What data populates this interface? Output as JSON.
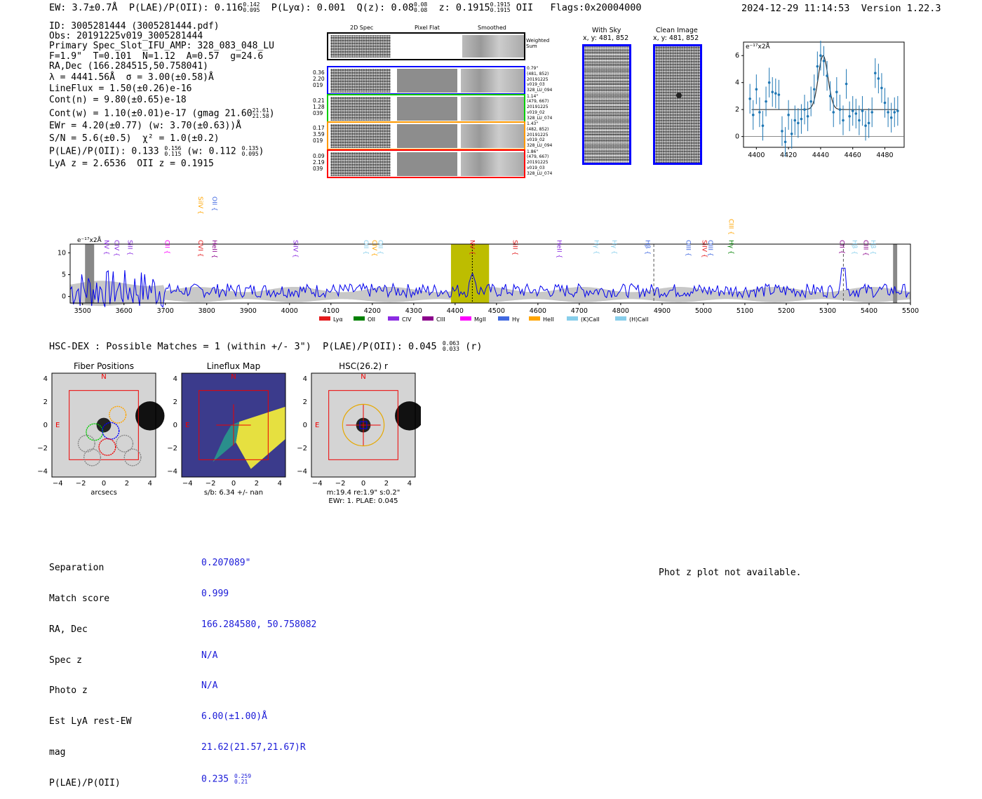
{
  "header": {
    "ew": "EW: 3.7±0.7Å",
    "plae": "P(LAE)/P(OII): 0.116",
    "plae_hi": "0.142",
    "plae_lo": "0.095",
    "plya": "P(Lyα): 0.001",
    "qz": "Q(z): 0.08",
    "qz_hi": "0.08",
    "qz_lo": "0.08",
    "z": "z: 0.1915",
    "z_hi": "0.1915",
    "z_lo": "0.1915",
    "z_line": "OII",
    "flags": "Flags:0x20004000",
    "datetime": "2024-12-29 11:14:53",
    "version": "Version 1.22.3"
  },
  "info": {
    "id": "ID: 3005281444 (3005281444.pdf)",
    "obs": "Obs: 20191225v019_3005281444",
    "primary": "Primary Spec_Slot_IFU_AMP: 328_083_048_LU",
    "fiber": "F=1.9\"  T=0.101  N=1.12  A=0.57  g=24.6",
    "radec": "RA,Dec (166.284515,50.758041)",
    "lambda": "λ = 4441.56Å  σ = 3.00(±0.58)Å",
    "lineflux": "LineFlux = 1.50(±0.26)e-16",
    "contn": "Cont(n) = 9.80(±0.65)e-18",
    "contw": "Cont(w) = 1.10(±0.01)e-17 (gmag 21.60",
    "contw_hi": "21.61",
    "contw_lo": "21.58",
    "ewr": "EWr = 4.20(±0.77) (w: 3.70(±0.63))Å",
    "sn": "S/N = 5.6(±0.5)  χ² = 1.0(±0.2)",
    "plae": "P(LAE)/P(OII): 0.133",
    "plae_hi": "0.156",
    "plae_lo": "0.115",
    "plae_w": "(w: 0.112",
    "plae_w_hi": "0.135",
    "plae_w_lo": "0.095",
    "lya": "LyA z = 2.6536  OII z = 0.1915"
  },
  "cutouts": {
    "col_2d": "2D Spec",
    "col_flat": "Pixel Flat",
    "col_smooth": "Smoothed",
    "weighted": "Weighted Sum",
    "rows": [
      {
        "left": [
          "0.36",
          "2.20",
          "019"
        ],
        "right": [
          "0.79\"",
          "(481, 852)",
          "20191225",
          "v019_03",
          "328_LU_094"
        ],
        "color": "#0000ff"
      },
      {
        "left": [
          "0.21",
          "1.28",
          "039"
        ],
        "right": [
          "1.14\"",
          "(479, 667)",
          "20191225",
          "v019_02",
          "328_LU_074"
        ],
        "color": "#00cc00"
      },
      {
        "left": [
          "0.17",
          "3.59",
          "019"
        ],
        "right": [
          "1.43\"",
          "(482, 852)",
          "20191225",
          "v019_02",
          "328_LU_094"
        ],
        "color": "#ff9900"
      },
      {
        "left": [
          "0.09",
          "2.19",
          "039"
        ],
        "right": [
          "1.86\"",
          "(479, 667)",
          "20191225",
          "v019_03",
          "328_LU_074"
        ],
        "color": "#ff0000"
      }
    ]
  },
  "sky": {
    "with_sky": "With Sky",
    "with_sky_xy": "x, y: 481, 852",
    "clean": "Clean Image",
    "clean_xy": "x, y: 481, 852"
  },
  "zoom_plot": {
    "unit": "e⁻¹⁷x2Å"
  },
  "full_spec": {
    "unit": "e⁻¹⁷x2Å",
    "legend": [
      {
        "name": "Lyα",
        "color": "#e41a1c"
      },
      {
        "name": "OII",
        "color": "#008000"
      },
      {
        "name": "CIV",
        "color": "#8a2be2"
      },
      {
        "name": "CIII",
        "color": "#8b008b"
      },
      {
        "name": "MgII",
        "color": "#ff00ff"
      },
      {
        "name": "Hγ",
        "color": "#4169e1"
      },
      {
        "name": "HeII",
        "color": "#ffa500"
      },
      {
        "name": "(K)CaII",
        "color": "#87ceeb"
      },
      {
        "name": "(H)CaII",
        "color": "#87ceeb"
      }
    ]
  },
  "hsc": {
    "title": "HSC-DEX : Possible Matches = 1 (within +/- 3\")  P(LAE)/P(OII): 0.045",
    "plae_hi": "0.063",
    "plae_lo": "0.033",
    "band": "(r)"
  },
  "maps": {
    "fiber_title": "Fiber Positions",
    "fiber_xlabel": "arcsecs",
    "lineflux_title": "Lineflux Map",
    "lineflux_xlabel": "s/b: 6.34 +/- nan",
    "hsc_title": "HSC(26.2) r",
    "hsc_xlabel1": "m:19.4  re:1.9\"  s:0.2\"",
    "hsc_xlabel2": "EWr: 1. PLAE: 0.045",
    "north": "N",
    "east": "E",
    "yticks": [
      "4",
      "2",
      "0",
      "−2",
      "−4"
    ],
    "xticks": [
      "−4",
      "−2",
      "0",
      "2",
      "4"
    ]
  },
  "bottom": {
    "labels": [
      "Separation",
      "Match score",
      "RA, Dec",
      "Spec z",
      "Photo z",
      "Est LyA rest-EW",
      "mag",
      "P(LAE)/P(OII)"
    ],
    "separation": "0.207089\"",
    "match": "0.999",
    "radec": "166.284580, 50.758082",
    "specz": "N/A",
    "photoz": "N/A",
    "ew": "6.00(±1.00)Å",
    "mag": "21.62(21.57,21.67)R",
    "plae": "0.235",
    "plae_hi": "0.259",
    "plae_lo": "0.21",
    "photz_msg": "Phot z plot not available."
  },
  "chart_data": [
    {
      "type": "scatter",
      "title": "",
      "xlabel": "",
      "ylabel": "e⁻¹⁷x2Å",
      "xlim": [
        4392,
        4492
      ],
      "ylim": [
        -0.8,
        7
      ],
      "xticks": [
        4400,
        4420,
        4440,
        4460,
        4480
      ],
      "yticks": [
        0,
        2,
        4,
        6
      ],
      "x": [
        4396,
        4398,
        4400,
        4402,
        4404,
        4406,
        4408,
        4410,
        4412,
        4414,
        4416,
        4418,
        4420,
        4422,
        4424,
        4426,
        4428,
        4430,
        4432,
        4434,
        4436,
        4438,
        4440,
        4442,
        4444,
        4446,
        4448,
        4450,
        4452,
        4454,
        4456,
        4458,
        4460,
        4462,
        4464,
        4466,
        4468,
        4470,
        4472,
        4474,
        4476,
        4478,
        4480,
        4482,
        4484,
        4486,
        4488
      ],
      "y": [
        2.8,
        1.6,
        3.5,
        1.8,
        0.8,
        2.6,
        4.0,
        3.3,
        3.2,
        3.1,
        0.4,
        -0.4,
        1.6,
        0.2,
        1.2,
        1.0,
        1.3,
        2.0,
        1.5,
        2.6,
        3.5,
        5.2,
        6.0,
        5.6,
        4.5,
        3.0,
        1.8,
        3.3,
        2.0,
        1.2,
        3.9,
        1.5,
        1.9,
        1.7,
        1.2,
        1.9,
        0.8,
        1.0,
        1.8,
        4.7,
        4.3,
        3.6,
        2.5,
        1.8,
        1.4,
        1.8,
        1.9
      ],
      "model": {
        "type": "gaussian",
        "center": 4441.56,
        "sigma": 3.0,
        "amplitude": 4.0,
        "continuum": 2.0
      }
    },
    {
      "type": "line",
      "title": "",
      "xlabel": "",
      "ylabel": "e⁻¹⁷x2Å",
      "xlim": [
        3470,
        5500
      ],
      "ylim": [
        -1.5,
        12
      ],
      "xticks": [
        3500,
        3600,
        3700,
        3800,
        3900,
        4000,
        4100,
        4200,
        4300,
        4400,
        4500,
        4600,
        4700,
        4800,
        4900,
        5000,
        5100,
        5200,
        5300,
        5400,
        5500
      ],
      "yticks": [
        0,
        5,
        10
      ],
      "highlight_band": [
        4390,
        4482
      ],
      "marked_line": 4441.56,
      "dashed_lines": [
        4880,
        5338
      ],
      "gray_bands": [
        [
          3506,
          3528
        ],
        [
          5458,
          5468
        ]
      ],
      "line_labels": [
        {
          "name": "NV",
          "wave": 3553,
          "color": "#8a2be2",
          "row": 2
        },
        {
          "name": "CIV",
          "wave": 3578,
          "color": "#8a2be2",
          "row": 2
        },
        {
          "name": "SiII",
          "wave": 3610,
          "color": "#8a2be2",
          "row": 2
        },
        {
          "name": "CII",
          "wave": 3700,
          "color": "#ff00ff",
          "row": 2
        },
        {
          "name": "OVI",
          "wave": 3780,
          "color": "#e41a1c",
          "row": 2
        },
        {
          "name": "SiIV",
          "wave": 3780,
          "color": "#ffa500",
          "row": 0
        },
        {
          "name": "HeII",
          "wave": 3814,
          "color": "#8b008b",
          "row": 2
        },
        {
          "name": "OII",
          "wave": 3814,
          "color": "#4169e1",
          "row": 0
        },
        {
          "name": "SiIV",
          "wave": 4010,
          "color": "#8a2be2",
          "row": 2
        },
        {
          "name": "OII",
          "wave": 4180,
          "color": "#87ceeb",
          "row": 2
        },
        {
          "name": "CIV",
          "wave": 4200,
          "color": "#ffa500",
          "row": 2
        },
        {
          "name": "OII",
          "wave": 4215,
          "color": "#87ceeb",
          "row": 2
        },
        {
          "name": "NV",
          "wave": 4437,
          "color": "#e41a1c",
          "row": 2
        },
        {
          "name": "SiII",
          "wave": 4540,
          "color": "#e41a1c",
          "row": 2
        },
        {
          "name": "HeII",
          "wave": 4647,
          "color": "#8a2be2",
          "row": 2
        },
        {
          "name": "Hγ",
          "wave": 4737,
          "color": "#87ceeb",
          "row": 2
        },
        {
          "name": "Hγ",
          "wave": 4780,
          "color": "#87ceeb",
          "row": 2
        },
        {
          "name": "Hβ",
          "wave": 4860,
          "color": "#4169e1",
          "row": 2
        },
        {
          "name": "OIII",
          "wave": 4959,
          "color": "#4169e1",
          "row": 2
        },
        {
          "name": "SiIV",
          "wave": 4998,
          "color": "#e41a1c",
          "row": 2
        },
        {
          "name": "OIII",
          "wave": 5012,
          "color": "#4169e1",
          "row": 2
        },
        {
          "name": "Hγ",
          "wave": 5062,
          "color": "#008000",
          "row": 2
        },
        {
          "name": "CIII",
          "wave": 5062,
          "color": "#ffa500",
          "row": 1
        },
        {
          "name": "CII",
          "wave": 5330,
          "color": "#8b008b",
          "row": 2
        },
        {
          "name": "Hβ",
          "wave": 5360,
          "color": "#87ceeb",
          "row": 2
        },
        {
          "name": "CIII",
          "wave": 5387,
          "color": "#8b008b",
          "row": 2
        },
        {
          "name": "Hβ",
          "wave": 5405,
          "color": "#87ceeb",
          "row": 2
        }
      ]
    }
  ]
}
